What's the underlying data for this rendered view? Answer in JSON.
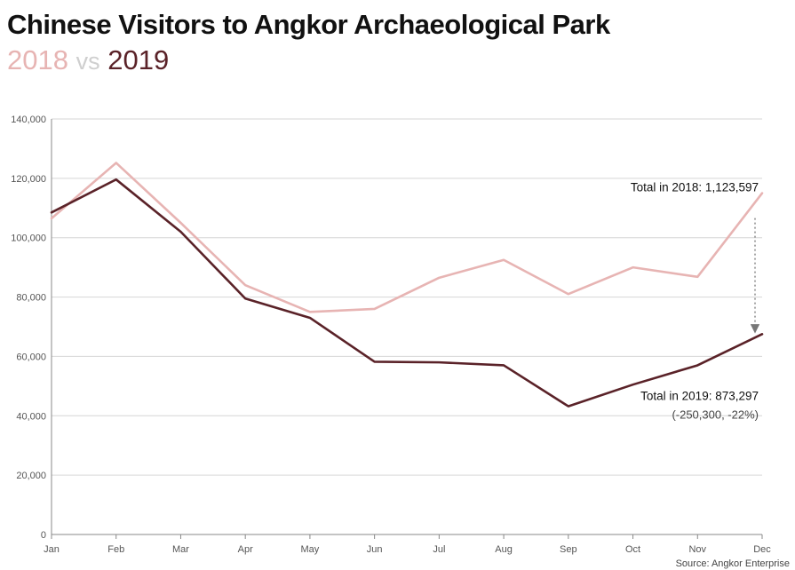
{
  "chart_data": {
    "type": "line",
    "title": "Chinese Visitors to Angkor Archaeological Park",
    "subtitle": {
      "a": "2018",
      "vs": "vs",
      "b": "2019"
    },
    "categories": [
      "Jan",
      "Feb",
      "Mar",
      "Apr",
      "May",
      "Jun",
      "Jul",
      "Aug",
      "Sep",
      "Oct",
      "Nov",
      "Dec"
    ],
    "y_ticks": [
      "0",
      "20,000",
      "40,000",
      "60,000",
      "80,000",
      "100,000",
      "120,000",
      "140,000"
    ],
    "ylim": [
      0,
      140000
    ],
    "grid": true,
    "series": [
      {
        "name": "2018",
        "color": "#e7b4b3",
        "values": [
          106500,
          125200,
          105000,
          84000,
          75000,
          76000,
          86500,
          92500,
          81000,
          90000,
          86800,
          115000
        ]
      },
      {
        "name": "2019",
        "color": "#5a2228",
        "values": [
          108500,
          119600,
          102000,
          79500,
          73000,
          58200,
          58000,
          57000,
          43200,
          50500,
          57000,
          67500
        ]
      }
    ],
    "annotations": {
      "total_2018": "Total in 2018: 1,123,597",
      "total_2019": "Total in 2019: 873,297",
      "change": "(-250,300, -22%)"
    },
    "source": "Source: Angkor Enterprise"
  }
}
